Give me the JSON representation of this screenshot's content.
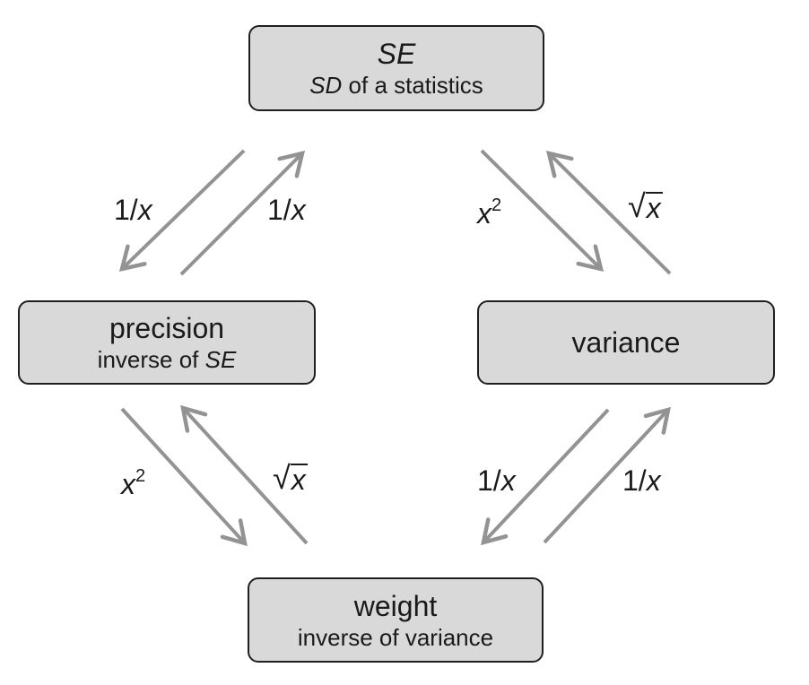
{
  "nodes": {
    "se": {
      "title": "SE",
      "subtitle_em": "SD",
      "subtitle_rest": " of a statistics"
    },
    "precision": {
      "title": "precision",
      "subtitle_rest": "inverse of ",
      "subtitle_em": "SE"
    },
    "variance": {
      "title": "variance"
    },
    "weight": {
      "title": "weight",
      "subtitle": "inverse of variance"
    }
  },
  "edges": [
    {
      "from": "se",
      "to": "precision",
      "num": "1/",
      "var": "x"
    },
    {
      "from": "precision",
      "to": "se",
      "num": "1/",
      "var": "x"
    },
    {
      "from": "se",
      "to": "variance",
      "var": "x",
      "exp": "2"
    },
    {
      "from": "variance",
      "to": "se",
      "radical": "√",
      "var": "x"
    },
    {
      "from": "precision",
      "to": "weight",
      "var": "x",
      "exp": "2"
    },
    {
      "from": "weight",
      "to": "precision",
      "radical": "√",
      "var": "x"
    },
    {
      "from": "variance",
      "to": "weight",
      "num": "1/",
      "var": "x"
    },
    {
      "from": "weight",
      "to": "variance",
      "num": "1/",
      "var": "x"
    }
  ],
  "colors": {
    "arrow": "#939393",
    "box_fill": "#d9d9d9",
    "box_border": "#1f1f1f",
    "text": "#1a1a1a"
  }
}
